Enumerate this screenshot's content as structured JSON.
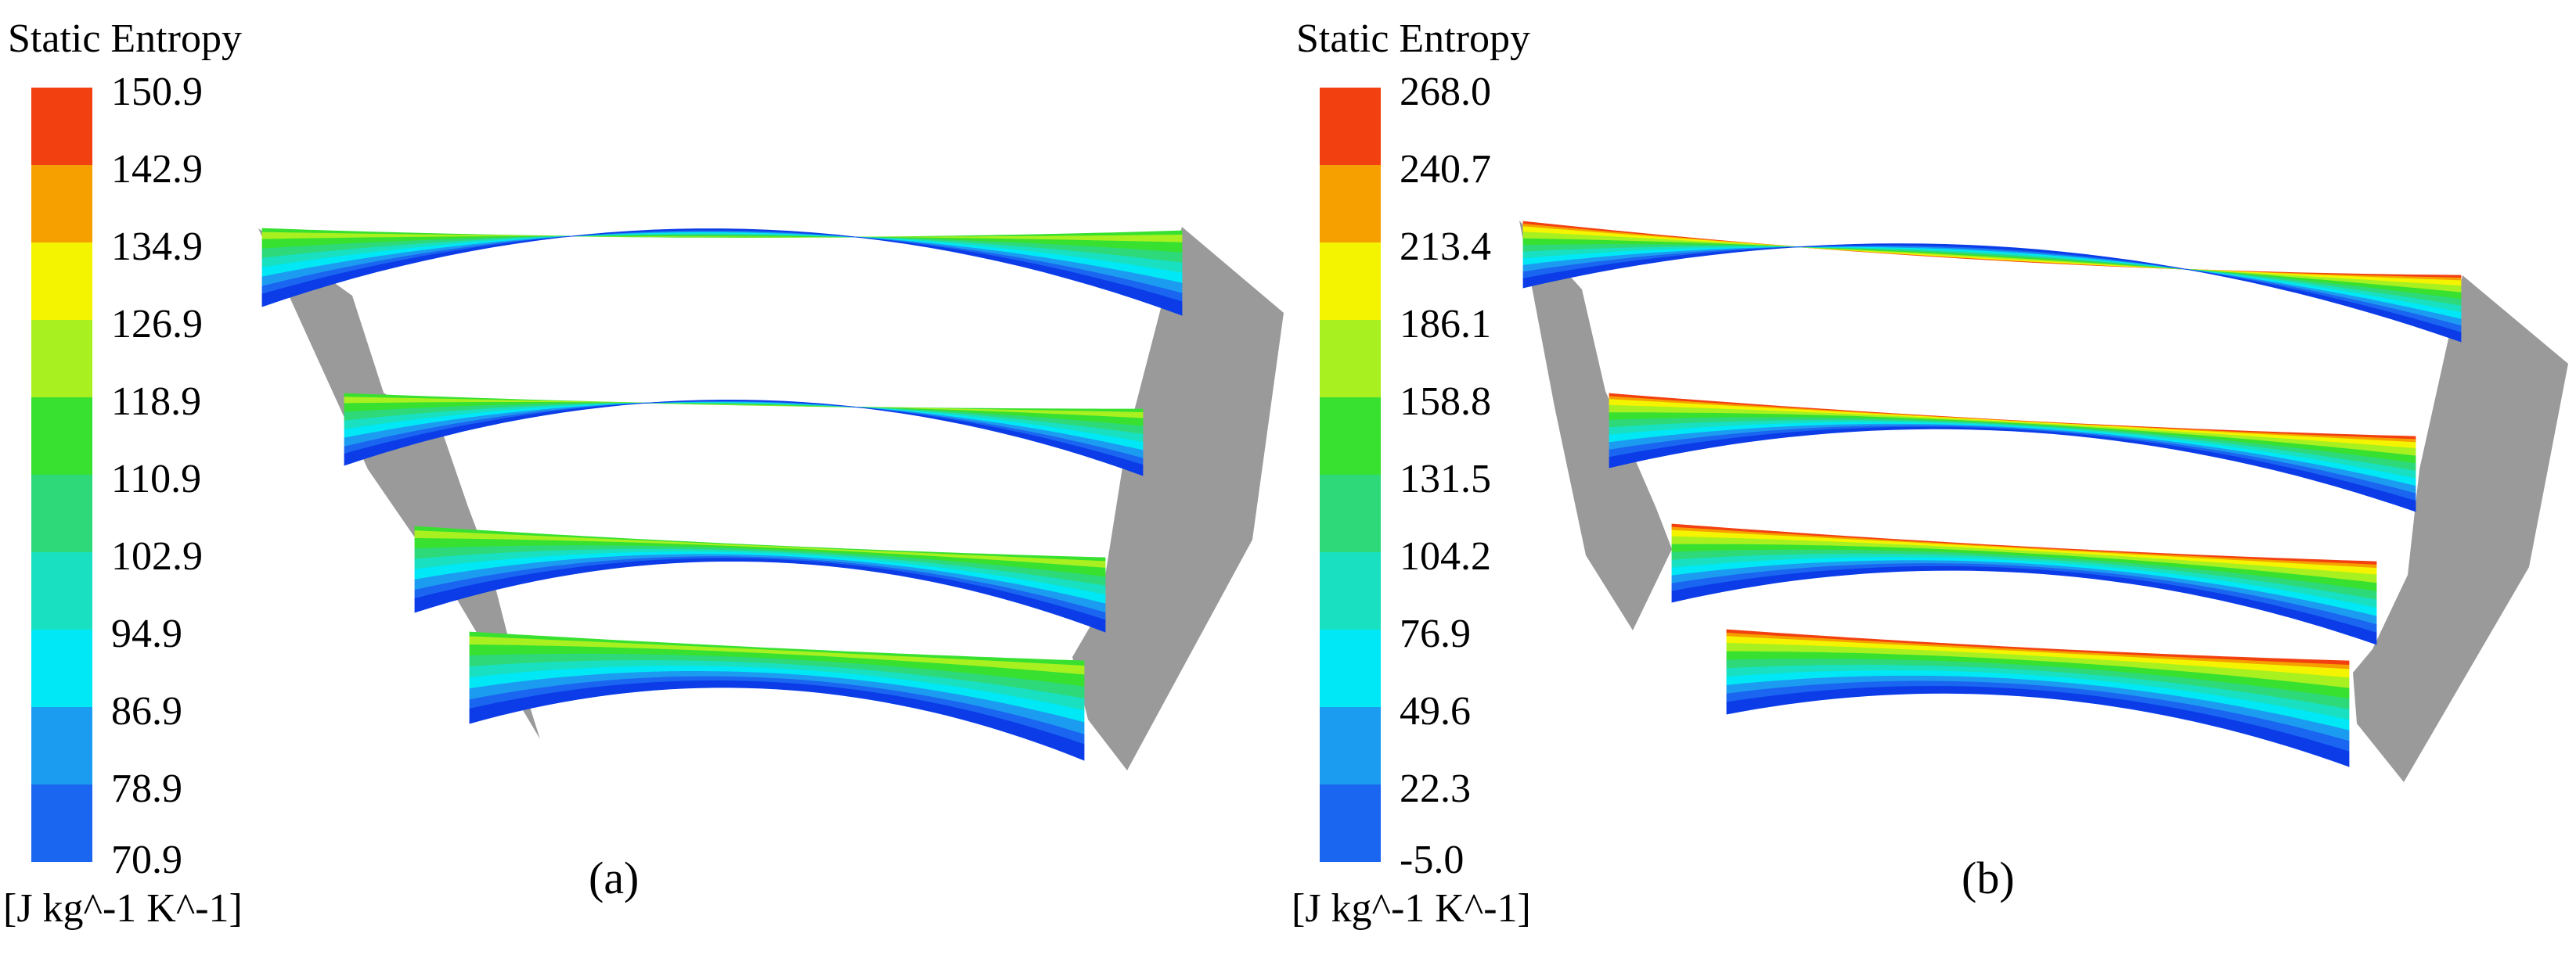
{
  "colors": {
    "levels": [
      "#0b3ce8",
      "#1a66f0",
      "#1c9cf0",
      "#00e8f5",
      "#18e0c0",
      "#2ed97a",
      "#38e030",
      "#a8f020",
      "#f4f400",
      "#f6a000",
      "#f24010"
    ],
    "wall": "#9a9a9a"
  },
  "panels": [
    {
      "caption": "(a)",
      "legend": {
        "title": "Static Entropy",
        "unit": "[J kg^-1 K^-1]",
        "ticks": [
          "150.9",
          "142.9",
          "134.9",
          "126.9",
          "118.9",
          "110.9",
          "102.9",
          "94.9",
          "86.9",
          "78.9",
          "70.9"
        ]
      }
    },
    {
      "caption": "(b)",
      "legend": {
        "title": "Static Entropy",
        "unit": "[J kg^-1 K^-1]",
        "ticks": [
          "268.0",
          "240.7",
          "213.4",
          "186.1",
          "158.8",
          "131.5",
          "104.2",
          "76.9",
          "49.6",
          "22.3",
          "-5.0"
        ]
      }
    }
  ]
}
